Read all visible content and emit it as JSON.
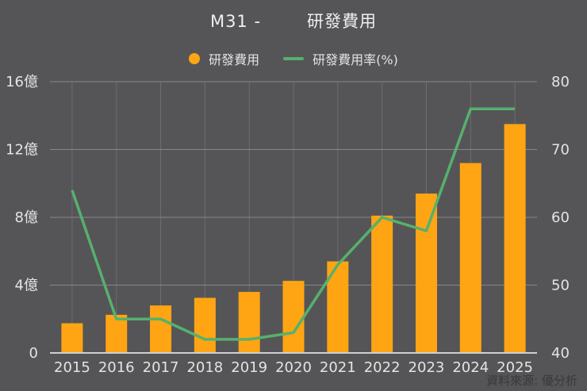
{
  "title": {
    "part1": "M31 -",
    "part2": "研發費用"
  },
  "legend": [
    {
      "label": "研發費用",
      "swatch": "circle-icon",
      "color": "#ffa513"
    },
    {
      "label": "研發費用率(%)",
      "swatch": "line-icon",
      "color": "#57b06e"
    }
  ],
  "source": "資料來源: 優分析",
  "colors": {
    "background": "#555557",
    "bar": "#ffa513",
    "line": "#57b06e",
    "h_grid": "#87878b",
    "v_grid": "#6d6d71",
    "baseline": "#cfcfd2",
    "axis_text": "#e4e4e4",
    "source_text": "#39393b"
  },
  "chart_data": {
    "type": "bar",
    "title": "M31 - 研發費用",
    "categories": [
      "2015",
      "2016",
      "2017",
      "2018",
      "2019",
      "2020",
      "2021",
      "2022",
      "2023",
      "2024",
      "2025"
    ],
    "series": [
      {
        "name": "研發費用",
        "type": "bar",
        "axis": "left",
        "unit": "億",
        "color": "#ffa513",
        "values": [
          1.75,
          2.25,
          2.8,
          3.25,
          3.6,
          4.25,
          5.4,
          8.1,
          9.4,
          11.2,
          13.5
        ]
      },
      {
        "name": "研發費用率(%)",
        "type": "line",
        "axis": "right",
        "unit": "%",
        "color": "#57b06e",
        "values": [
          64,
          45,
          45,
          42,
          42,
          43,
          53,
          60,
          58,
          76,
          76
        ]
      }
    ],
    "left_axis": {
      "min": 0,
      "max": 16,
      "ticks": [
        "0",
        "4億",
        "8億",
        "12億",
        "16億"
      ]
    },
    "right_axis": {
      "min": 40,
      "max": 80,
      "ticks": [
        "40",
        "50",
        "60",
        "70",
        "80"
      ]
    },
    "grid": true,
    "legend_position": "top"
  }
}
